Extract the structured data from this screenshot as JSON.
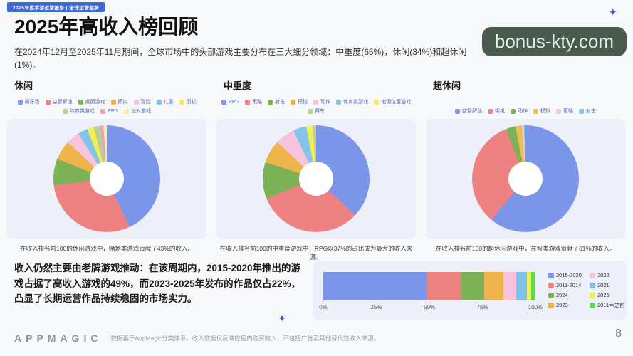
{
  "page": {
    "banner": "2025年度手游运营报告 | 全球运营趋势",
    "title": "2025年高收入榜回顾",
    "subtitle": "在2024年12月至2025年11月期间，全球市场中的头部游戏主要分布在三大细分领域：中重度(65%)，休闲(34%)和超休闲(1%)。",
    "watermark": "bonus-kty.com",
    "sparkle": "✦",
    "page_number": "8"
  },
  "insight": {
    "text": "收入仍然主要由老牌游戏推动：在该周期内，2015-2020年推出的游戏占据了高收入游戏的49%，而2023-2025年发布的作品仅占22%，凸显了长期运营作品持续稳固的市场实力。"
  },
  "footer": {
    "logo": "APPMAGIC",
    "note": "数据基于AppMagic分类体系。收入数据仅反映应用内购买收入，不包括广告及其他替代性收入来源。"
  },
  "colors": {
    "banner_blue": "#3e6ad6",
    "panel_bg": "#edf0f9",
    "watermark_bg": "#4b5a4e",
    "sparkle_purple": "#5b4fd4"
  },
  "chart_data": [
    {
      "type": "pie",
      "title": "休闲",
      "caption": "在收入排名前100的休闲游戏中，赌场类游戏贡献了43%的收入。",
      "slices": [
        {
          "label": "娱乐场",
          "value": 43,
          "color": "#7b96e8"
        },
        {
          "label": "益智解谜",
          "value": 30,
          "color": "#ee8282"
        },
        {
          "label": "桌面游戏",
          "value": 8,
          "color": "#7cb156"
        },
        {
          "label": "模拟",
          "value": 6,
          "color": "#edb44c"
        },
        {
          "label": "冒险",
          "value": 4,
          "color": "#f7c3de"
        },
        {
          "label": "儿童",
          "value": 3,
          "color": "#85c4e9"
        },
        {
          "label": "街机",
          "value": 2,
          "color": "#f4ee55"
        },
        {
          "label": "体育类游戏",
          "value": 2,
          "color": "#b9cf97"
        },
        {
          "label": "RPG",
          "value": 1,
          "color": "#f49ac1"
        },
        {
          "label": "派对游戏",
          "value": 1,
          "color": "#f2efa5"
        }
      ]
    },
    {
      "type": "pie",
      "title": "中重度",
      "caption": "在收入排名前100的中重度游戏中，RPG以37%的占比成为最大的收入来源。",
      "slices": [
        {
          "label": "RPG",
          "value": 37,
          "color": "#7b96e8"
        },
        {
          "label": "策略",
          "value": 32,
          "color": "#ee8282"
        },
        {
          "label": "射击",
          "value": 11,
          "color": "#7cb156"
        },
        {
          "label": "模拟",
          "value": 7,
          "color": "#edb44c"
        },
        {
          "label": "动作",
          "value": 6,
          "color": "#f7c3de"
        },
        {
          "label": "体育类游戏",
          "value": 4,
          "color": "#85c4e9"
        },
        {
          "label": "地理位置游戏",
          "value": 2,
          "color": "#f4ee55"
        },
        {
          "label": "赛车",
          "value": 1,
          "color": "#b9cf97"
        }
      ]
    },
    {
      "type": "pie",
      "title": "超休闲",
      "caption": "在收入排名前100的超休闲游戏中，益智类游戏贡献了61%的收入。",
      "slices": [
        {
          "label": "益智解谜",
          "value": 61,
          "color": "#7b96e8"
        },
        {
          "label": "街机",
          "value": 33,
          "color": "#ee8282"
        },
        {
          "label": "动作",
          "value": 3,
          "color": "#7cb156"
        },
        {
          "label": "模拟",
          "value": 2,
          "color": "#edbf4c"
        },
        {
          "label": "策略",
          "value": 0.5,
          "color": "#f7c3de"
        },
        {
          "label": "射击",
          "value": 0.5,
          "color": "#85c4e9"
        }
      ]
    },
    {
      "type": "bar",
      "orientation": "horizontal",
      "stacked": true,
      "x_ticks": [
        "0%",
        "25%",
        "50%",
        "75%",
        "100%"
      ],
      "xlim": [
        0,
        100
      ],
      "legend_position": "right",
      "segments": [
        {
          "label": "2015-2020",
          "value": 49,
          "color": "#7b96e8"
        },
        {
          "label": "2011-2014",
          "value": 16,
          "color": "#ee8282"
        },
        {
          "label": "2024",
          "value": 11,
          "color": "#7cb156"
        },
        {
          "label": "2023",
          "value": 9,
          "color": "#edb44c"
        },
        {
          "label": "2022",
          "value": 6,
          "color": "#f7c3de"
        },
        {
          "label": "2021",
          "value": 5,
          "color": "#7cc3ea"
        },
        {
          "label": "2025",
          "value": 2,
          "color": "#f4ee55"
        },
        {
          "label": "2011年之前",
          "value": 2,
          "color": "#5fd94a"
        }
      ]
    }
  ]
}
